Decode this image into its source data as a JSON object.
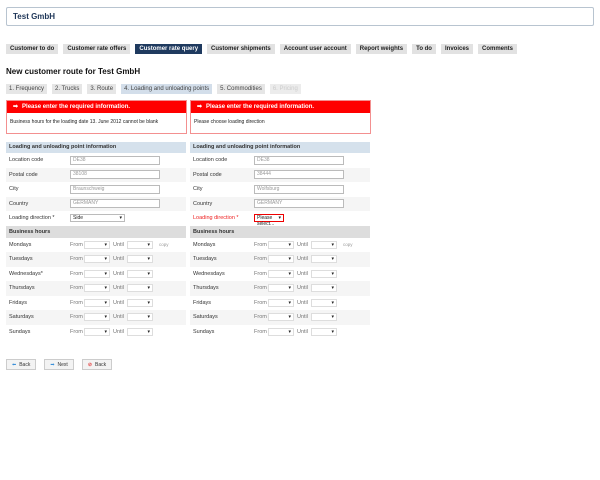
{
  "title": "Test GmbH",
  "nav": [
    {
      "label": "Customer to do"
    },
    {
      "label": "Customer rate offers"
    },
    {
      "label": "Customer rate query",
      "active": true
    },
    {
      "label": "Customer shipments"
    },
    {
      "label": "Account user account"
    },
    {
      "label": "Report weights"
    },
    {
      "label": "To do"
    },
    {
      "label": "Invoices"
    },
    {
      "label": "Comments"
    }
  ],
  "heading": "New customer route for Test GmbH",
  "steps": [
    "1. Frequency",
    "2. Trucks",
    "3. Route",
    "4. Loading and unloading points",
    "5. Commodities",
    "6. Pricing"
  ],
  "errors": [
    {
      "title": "Please enter the required information.",
      "message": "Business hours for the loading date 13. June 2012 cannot be blank"
    },
    {
      "title": "Please enter the required information.",
      "message": "Please choose loading direction"
    }
  ],
  "labels": {
    "section": "Loading and unloading point information",
    "location": "Location code",
    "postal": "Postal code",
    "city": "City",
    "country": "Country",
    "direction": "Loading direction *",
    "hours": "Business hours",
    "from": "From",
    "until": "Until",
    "copy": "copy"
  },
  "panels": [
    {
      "location": "DE38",
      "postal": "38108",
      "city": "Braunschweig",
      "country": "GERMANY",
      "direction": "Side",
      "days": [
        "Mondays",
        "Tuesdays",
        "Wednesdays*",
        "Thursdays",
        "Fridays",
        "Saturdays",
        "Sundays"
      ]
    },
    {
      "location": "DE38",
      "postal": "38444",
      "city": "Wolfsburg",
      "country": "GERMANY",
      "direction": "Please select...",
      "days": [
        "Mondays",
        "Tuesdays",
        "Wednesdays",
        "Thursdays",
        "Fridays",
        "Saturdays",
        "Sundays"
      ]
    }
  ],
  "buttons": {
    "back": "Back",
    "next": "Next",
    "cancel": "Back"
  },
  "colors": {
    "accent": "#1f3a5f",
    "error": "#ff0000"
  }
}
